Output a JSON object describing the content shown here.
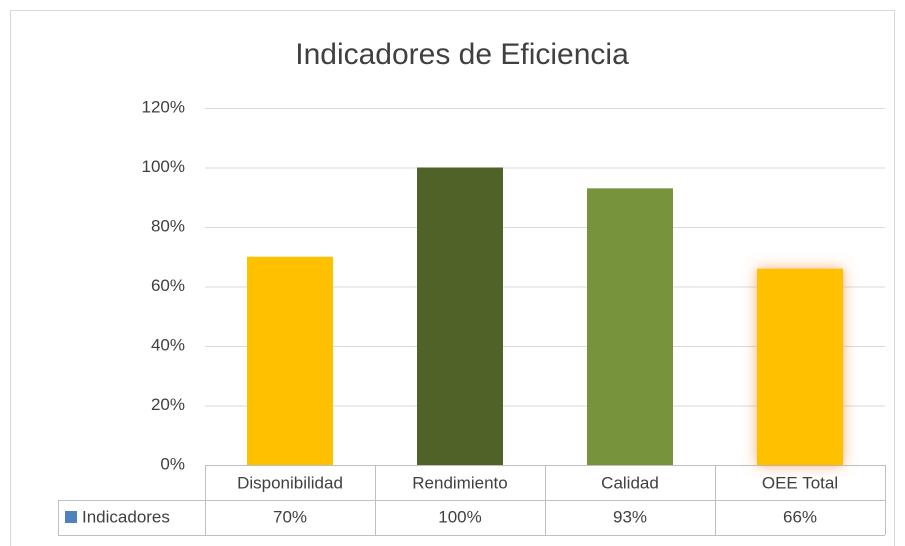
{
  "chart_data": {
    "type": "bar",
    "title": "Indicadores de Eficiencia",
    "categories": [
      "Disponibilidad",
      "Rendimiento",
      "Calidad",
      "OEE Total"
    ],
    "series": [
      {
        "name": "Indicadores",
        "color": "#4F81BD",
        "values": [
          70,
          100,
          93,
          66
        ],
        "value_labels": [
          "70%",
          "100%",
          "93%",
          "66%"
        ]
      }
    ],
    "bar_colors": [
      "#FFC000",
      "#4F6228",
      "#77933C",
      "#FFC000"
    ],
    "ylim": [
      0,
      120
    ],
    "yticks": [
      {
        "value": 0,
        "label": "0%"
      },
      {
        "value": 20,
        "label": "20%"
      },
      {
        "value": 40,
        "label": "40%"
      },
      {
        "value": 60,
        "label": "60%"
      },
      {
        "value": 80,
        "label": "80%"
      },
      {
        "value": 100,
        "label": "100%"
      },
      {
        "value": 120,
        "label": "120%"
      }
    ],
    "grid": true
  }
}
